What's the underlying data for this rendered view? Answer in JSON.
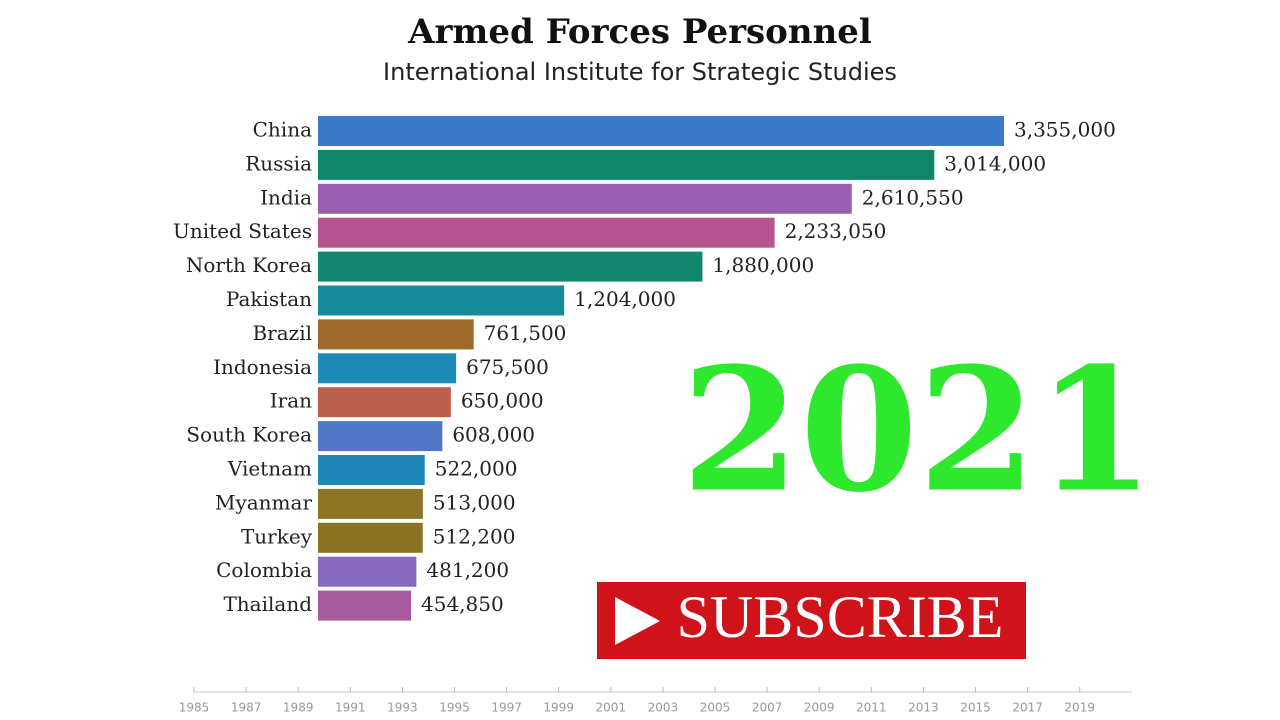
{
  "chart_data": {
    "type": "bar",
    "orientation": "horizontal",
    "title": "Armed Forces Personnel",
    "subtitle": "International Institute for Strategic Studies",
    "categories": [
      "China",
      "Russia",
      "India",
      "United States",
      "North Korea",
      "Pakistan",
      "Brazil",
      "Indonesia",
      "Iran",
      "South Korea",
      "Vietnam",
      "Myanmar",
      "Turkey",
      "Colombia",
      "Thailand"
    ],
    "values": [
      3355000,
      3014000,
      2610550,
      2233050,
      1880000,
      1204000,
      761500,
      675500,
      650000,
      608000,
      522000,
      513000,
      512200,
      481200,
      454850
    ],
    "value_labels": [
      "3,355,000",
      "3,014,000",
      "2,610,550",
      "2,233,050",
      "1,880,000",
      "1,204,000",
      "761,500",
      "675,500",
      "650,000",
      "608,000",
      "522,000",
      "513,000",
      "512,200",
      "481,200",
      "454,850"
    ],
    "colors": [
      "#3a7ac8",
      "#11876a",
      "#9a5fb0",
      "#b4558f",
      "#13876e",
      "#158a9a",
      "#a0692c",
      "#1e8ab8",
      "#b9614a",
      "#5277c7",
      "#1f86b8",
      "#8d7427",
      "#8b7224",
      "#8769bd",
      "#a65c9f"
    ],
    "xlim": [
      0,
      3355000
    ]
  },
  "overlay": {
    "year": "2021",
    "button": "SUBSCRIBE"
  },
  "timeline": {
    "ticks": [
      1985,
      1987,
      1989,
      1991,
      1993,
      1995,
      1997,
      1999,
      2001,
      2003,
      2005,
      2007,
      2009,
      2011,
      2013,
      2015,
      2017,
      2019
    ]
  }
}
